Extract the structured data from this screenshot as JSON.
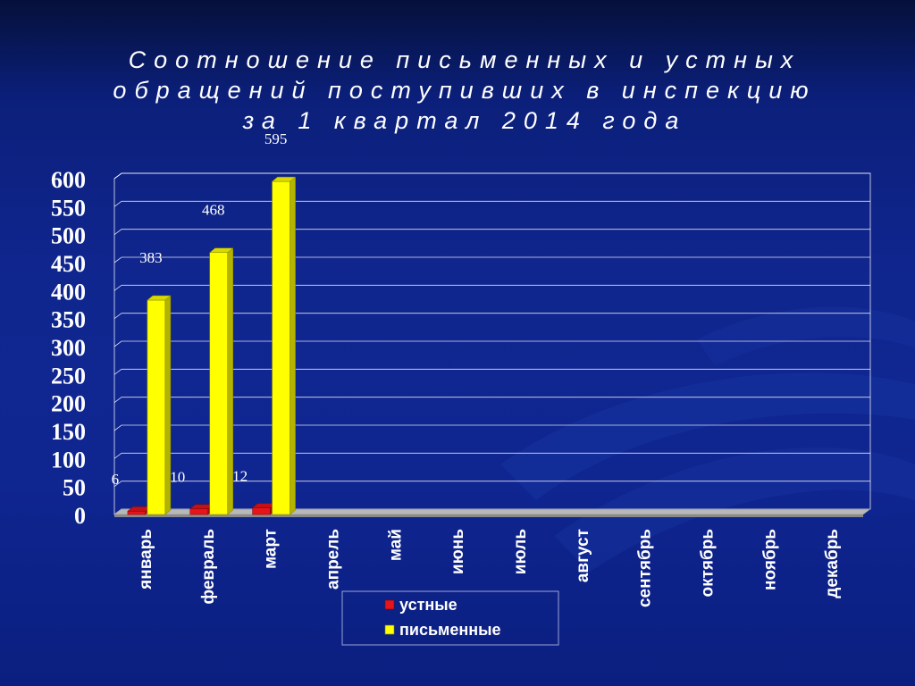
{
  "slide": {
    "colors": {
      "background": "#10268f",
      "bar_oral": "#e8141a",
      "bar_written": "#ffff00",
      "axis_text": "#ffffff",
      "grid": "#ffffff"
    }
  },
  "chart_data": {
    "type": "bar",
    "title_lines": [
      "Соотношение письменных и устных",
      "обращений поступивших в инспекцию",
      "за 1 квартал 2014 года"
    ],
    "categories": [
      "январь",
      "февраль",
      "март",
      "апрель",
      "май",
      "июнь",
      "июль",
      "август",
      "сентябрь",
      "октябрь",
      "ноябрь",
      "декабрь"
    ],
    "series": [
      {
        "name": "устные",
        "values": [
          6,
          10,
          12,
          null,
          null,
          null,
          null,
          null,
          null,
          null,
          null,
          null
        ],
        "color": "#e8141a"
      },
      {
        "name": "письменные",
        "values": [
          383,
          468,
          595,
          null,
          null,
          null,
          null,
          null,
          null,
          null,
          null,
          null
        ],
        "color": "#ffff00"
      }
    ],
    "ylim": [
      0,
      600
    ],
    "yticks": [
      0,
      50,
      100,
      150,
      200,
      250,
      300,
      350,
      400,
      450,
      500,
      550,
      600
    ],
    "grid": true,
    "legend_position": "bottom-center",
    "data_labels": true,
    "style": "3d"
  }
}
